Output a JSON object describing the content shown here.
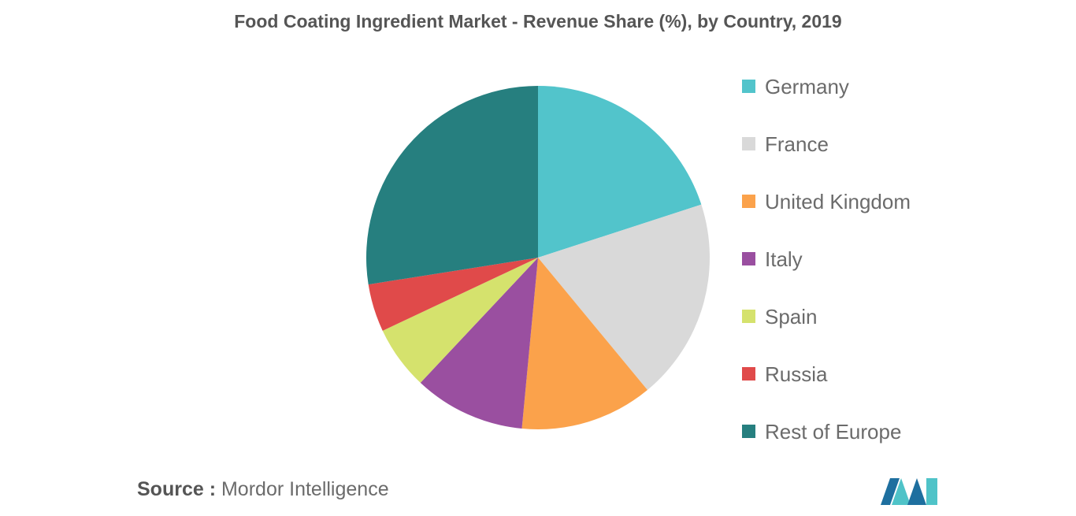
{
  "chart_data": {
    "type": "pie",
    "title": "Food Coating Ingredient Market - Revenue Share (%), by Country, 2019",
    "categories": [
      "Germany",
      "France",
      "United Kingdom",
      "Italy",
      "Spain",
      "Russia",
      "Rest of Europe"
    ],
    "values": [
      20,
      19,
      12.5,
      10.5,
      6,
      4.5,
      27.5
    ],
    "colors": [
      "#52c4cb",
      "#d9d9d9",
      "#fba24b",
      "#9a4fa0",
      "#d5e26d",
      "#e04a4a",
      "#267f7f"
    ],
    "start_angle_deg": 0,
    "direction": "clockwise",
    "legend_position": "right"
  },
  "source": {
    "label": "Source :",
    "text": "Mordor Intelligence"
  },
  "logo": {
    "icon": "mordor-intelligence-logo-icon",
    "colors": [
      "#1e6f9f",
      "#4fc3c8"
    ]
  }
}
